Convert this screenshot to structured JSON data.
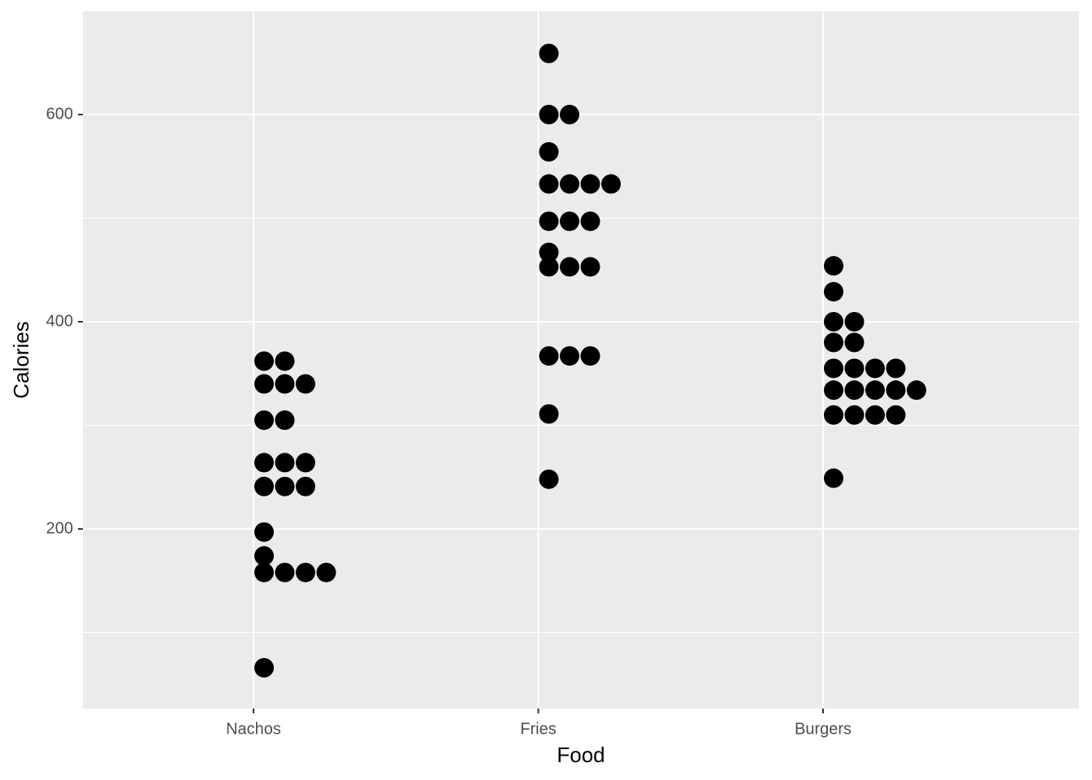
{
  "chart_data": {
    "type": "dotplot",
    "x_label": "Food",
    "y_label": "Calories",
    "categories": [
      "Nachos",
      "Fries",
      "Burgers"
    ],
    "values": [
      [
        66,
        158,
        158,
        158,
        158,
        174,
        197,
        241,
        241,
        241,
        264,
        264,
        264,
        305,
        305,
        340,
        340,
        340,
        362,
        362
      ],
      [
        248,
        311,
        367,
        367,
        367,
        453,
        453,
        453,
        467,
        497,
        497,
        497,
        533,
        533,
        533,
        533,
        564,
        600,
        600,
        659
      ],
      [
        249,
        310,
        310,
        310,
        310,
        334,
        334,
        334,
        334,
        334,
        355,
        355,
        355,
        355,
        380,
        380,
        400,
        400,
        429,
        454
      ]
    ],
    "color": "#000000",
    "ylim": [
      26.7,
      699.6
    ],
    "yticks": [
      200,
      400,
      600
    ],
    "minor_yticks": [
      100,
      300,
      500
    ],
    "grid": true
  }
}
